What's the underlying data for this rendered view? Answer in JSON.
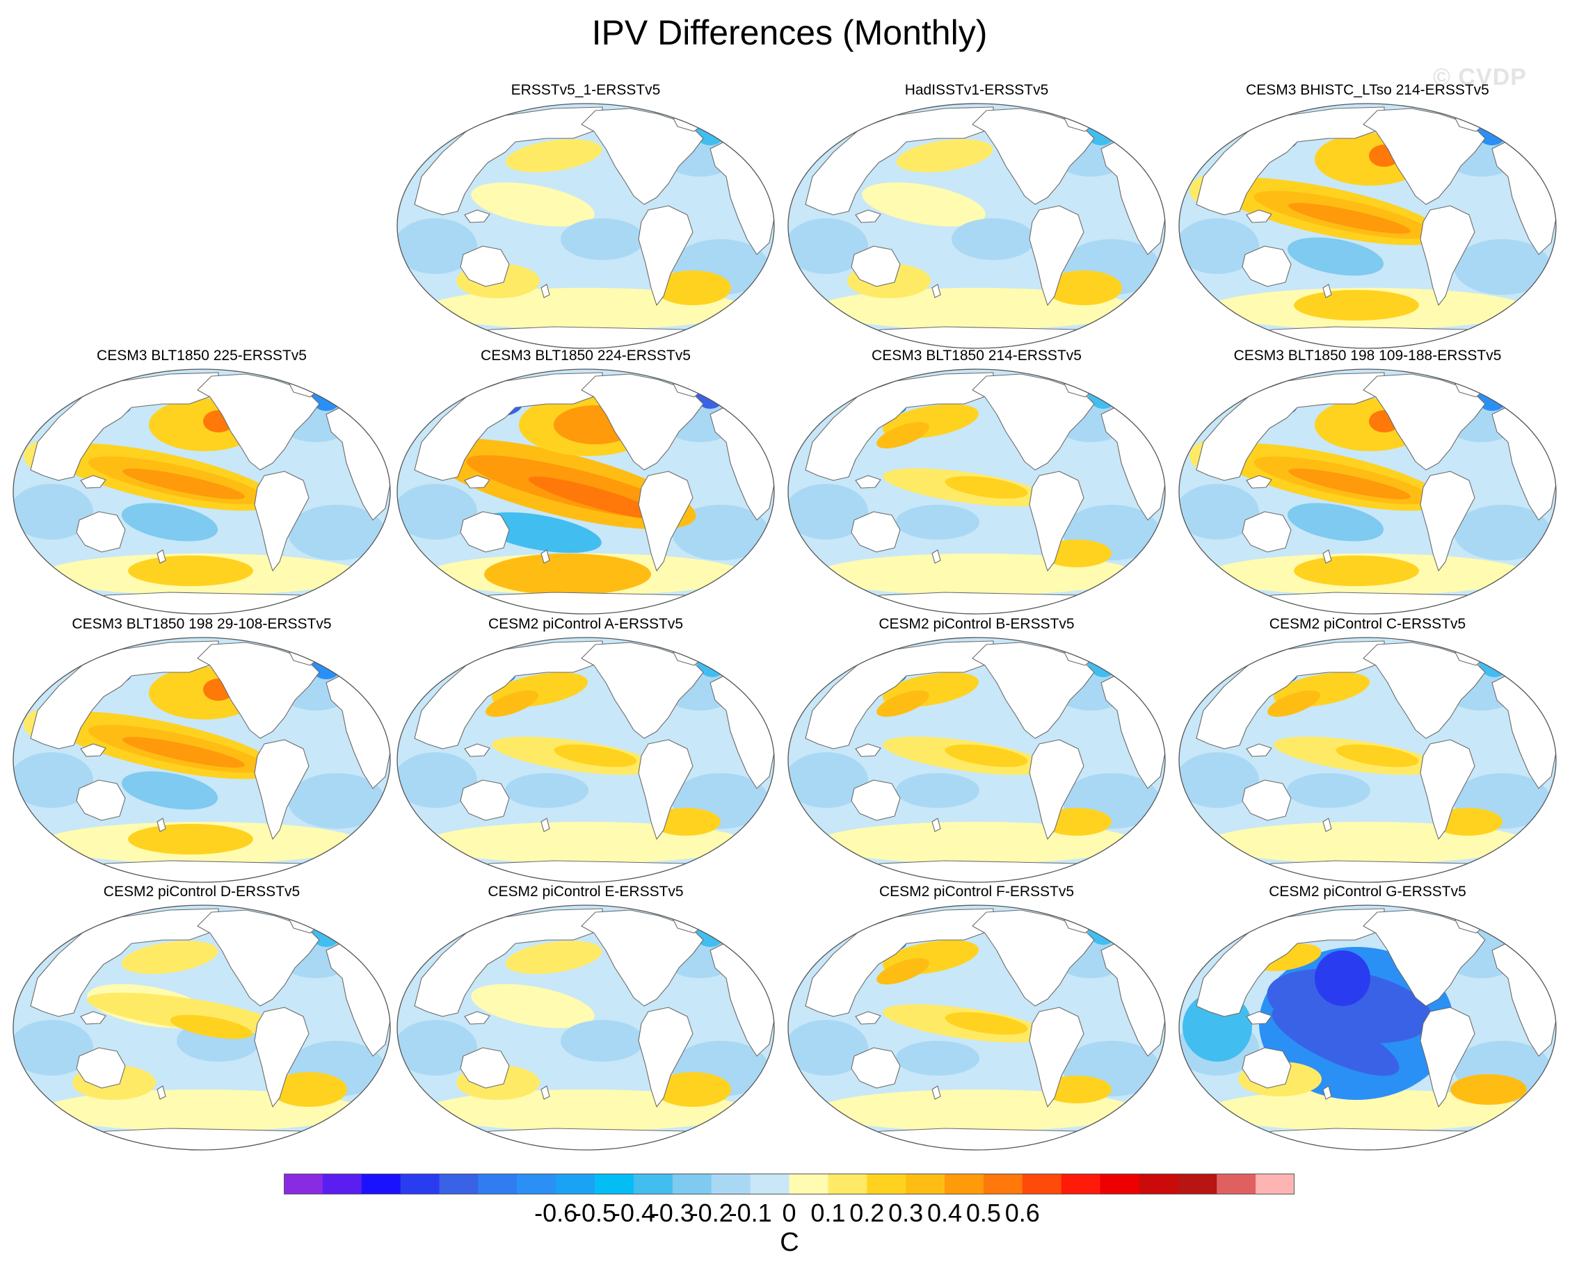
{
  "title": "IPV Differences (Monthly)",
  "watermark": "© CVDP",
  "chart_data": {
    "type": "heatmap",
    "projection": "Robinson-like global maps, Pacific-centered",
    "title": "IPV Differences (Monthly)",
    "colorbar": {
      "units": "C",
      "tick_labels": [
        "-0.6",
        "-0.5",
        "-0.4",
        "-0.3",
        "-0.2",
        "-0.1",
        "0",
        "0.1",
        "0.2",
        "0.3",
        "0.4",
        "0.5",
        "0.6"
      ],
      "colors": [
        "#8a2be2",
        "#5a1ff0",
        "#1a12ff",
        "#2a3cf0",
        "#3a62e6",
        "#2f7df0",
        "#2a90f5",
        "#1aa3f5",
        "#05bdf5",
        "#42bdf0",
        "#7ecaf0",
        "#a9d8f4",
        "#c8e7f8",
        "#fffbb0",
        "#ffea66",
        "#ffd21f",
        "#ffbd14",
        "#ff9a0a",
        "#ff780a",
        "#ff4a0a",
        "#ff1a0a",
        "#ee0000",
        "#cc0a0a",
        "#b81414",
        "#e06060",
        "#ffb4b4"
      ]
    },
    "panels": [
      {
        "title": "ERSSTv5_1-ERSSTv5",
        "pattern": "weak"
      },
      {
        "title": "HadISSTv1-ERSSTv5",
        "pattern": "weak"
      },
      {
        "title": "CESM3 BHISTC_LTso 214-ERSSTv5",
        "pattern": "strong"
      },
      {
        "title": "CESM3 BLT1850 225-ERSSTv5",
        "pattern": "strong"
      },
      {
        "title": "CESM3 BLT1850 224-ERSSTv5",
        "pattern": "very-strong"
      },
      {
        "title": "CESM3 BLT1850 214-ERSSTv5",
        "pattern": "moderate"
      },
      {
        "title": "CESM3 BLT1850 198 109-188-ERSSTv5",
        "pattern": "strong"
      },
      {
        "title": "CESM3 BLT1850 198 29-108-ERSSTv5",
        "pattern": "strong"
      },
      {
        "title": "CESM2 piControl A-ERSSTv5",
        "pattern": "moderate"
      },
      {
        "title": "CESM2 piControl B-ERSSTv5",
        "pattern": "moderate"
      },
      {
        "title": "CESM2 piControl C-ERSSTv5",
        "pattern": "moderate"
      },
      {
        "title": "CESM2 piControl D-ERSSTv5",
        "pattern": "weak-warm"
      },
      {
        "title": "CESM2 piControl E-ERSSTv5",
        "pattern": "weak"
      },
      {
        "title": "CESM2 piControl F-ERSSTv5",
        "pattern": "moderate"
      },
      {
        "title": "CESM2 piControl G-ERSSTv5",
        "pattern": "cold"
      }
    ]
  }
}
